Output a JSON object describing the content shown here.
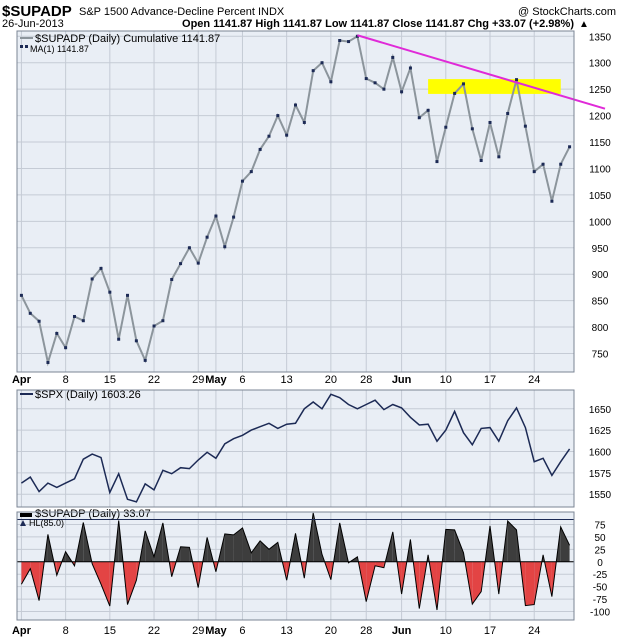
{
  "header": {
    "symbol": "$SUPADP",
    "description": "S&P 1500 Advance-Decline Percent",
    "exchange": "INDX",
    "copyright": "@ StockCharts.com",
    "date": "26-Jun-2013",
    "ohlc": "Open 1141.87  High 1141.87  Low 1141.87  Close 1141.87  Chg +33.07 (+2.98%)",
    "chg_arrow": "▲"
  },
  "colors": {
    "background": "#ffffff",
    "panel_bg": "#e9eef5",
    "grid": "#c5cbd5",
    "border": "#7b8594",
    "line_gray": "#8c959c",
    "line_navy": "#1c2a55",
    "marker": "#1c2a55",
    "trendline": "#e02ad8",
    "highlight": "#ffff00",
    "hist_pos": "#3d3d3d",
    "hist_neg": "#e34444"
  },
  "chart_data": [
    {
      "type": "line",
      "legend": [
        "$SUPADP (Daily) Cumulative 1141.87",
        "MA(1) 1141.87"
      ],
      "y_ticks": [
        750,
        800,
        850,
        900,
        950,
        1000,
        1050,
        1100,
        1150,
        1200,
        1250,
        1300,
        1350
      ],
      "ylim": [
        715,
        1360
      ],
      "x_labels": [
        {
          "label": "Apr",
          "index": 0
        },
        {
          "label": "8",
          "index": 5
        },
        {
          "label": "15",
          "index": 10
        },
        {
          "label": "22",
          "index": 15
        },
        {
          "label": "29",
          "index": 20
        },
        {
          "label": "May",
          "index": 22
        },
        {
          "label": "6",
          "index": 25
        },
        {
          "label": "13",
          "index": 30
        },
        {
          "label": "20",
          "index": 35
        },
        {
          "label": "28",
          "index": 39
        },
        {
          "label": "Jun",
          "index": 43
        },
        {
          "label": "10",
          "index": 48
        },
        {
          "label": "17",
          "index": 53
        },
        {
          "label": "24",
          "index": 58
        }
      ],
      "values": [
        860,
        826,
        811,
        733,
        788,
        761,
        820,
        812,
        891,
        911,
        866,
        777,
        860,
        774,
        737,
        802,
        812,
        890,
        920,
        950,
        921,
        970,
        1010,
        952,
        1008,
        1076,
        1094,
        1136,
        1161,
        1200,
        1163,
        1220,
        1187,
        1285,
        1300,
        1264,
        1342,
        1340,
        1350,
        1270,
        1262,
        1250,
        1310,
        1245,
        1290,
        1196,
        1210,
        1113,
        1178,
        1242,
        1260,
        1175,
        1115,
        1187,
        1122,
        1204,
        1268,
        1180,
        1094,
        1108,
        1038,
        1108,
        1141
      ],
      "trendline": [
        {
          "index": 38,
          "value": 1352
        },
        {
          "index": 63,
          "value": 1228
        }
      ],
      "highlight_zone": {
        "from_index": 46,
        "to_index": 61,
        "low": 1241,
        "high": 1269
      }
    },
    {
      "type": "line",
      "legend": [
        "$SPX (Daily) 1603.26"
      ],
      "y_ticks": [
        1550,
        1575,
        1600,
        1625,
        1650
      ],
      "ylim": [
        1535,
        1672
      ],
      "values": [
        1563,
        1570,
        1553,
        1563,
        1558,
        1563,
        1568,
        1591,
        1597,
        1593,
        1552,
        1574,
        1544,
        1541,
        1562,
        1555,
        1578,
        1574,
        1581,
        1580,
        1590,
        1599,
        1592,
        1609,
        1615,
        1619,
        1625,
        1629,
        1633,
        1627,
        1632,
        1633,
        1650,
        1658,
        1650,
        1667,
        1663,
        1655,
        1650,
        1655,
        1660,
        1649,
        1655,
        1651,
        1640,
        1631,
        1632,
        1612,
        1625,
        1647,
        1622,
        1608,
        1627,
        1628,
        1612,
        1636,
        1651,
        1628,
        1588,
        1592,
        1572,
        1588,
        1603
      ]
    },
    {
      "type": "area",
      "legend": [
        "$SUPADP (Daily) 33.07",
        "HL(85.0)"
      ],
      "y_ticks": [
        -100,
        -75,
        -50,
        -25,
        0,
        25,
        50,
        75
      ],
      "ylim": [
        -117,
        100
      ],
      "values": [
        -45,
        -14,
        -78,
        55,
        -27,
        20,
        -8,
        79,
        -4,
        -45,
        -89,
        83,
        -86,
        -37,
        62,
        10,
        78,
        -30,
        30,
        29,
        -52,
        49,
        -20,
        56,
        54,
        68,
        18,
        42,
        25,
        39,
        -37,
        57,
        -33,
        98,
        15,
        -36,
        78,
        -2,
        10,
        -80,
        -8,
        -12,
        60,
        -65,
        45,
        -94,
        14,
        -97,
        65,
        64,
        18,
        -85,
        -60,
        72,
        -65,
        82,
        64,
        -88,
        -86,
        14,
        -70,
        70,
        33
      ]
    }
  ]
}
